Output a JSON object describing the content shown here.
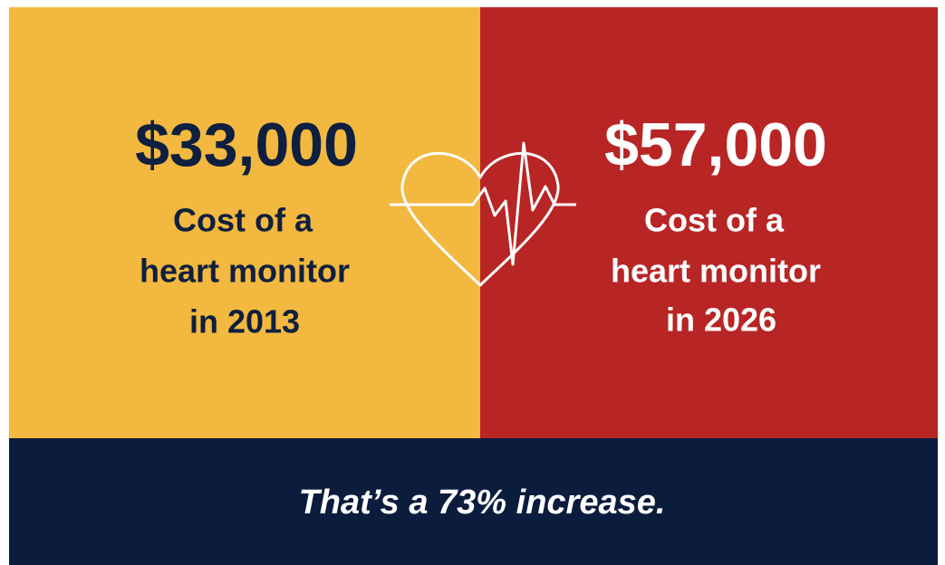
{
  "left": {
    "amount": "$33,000",
    "lines": [
      "Cost of a",
      "heart monitor",
      "in 2013"
    ]
  },
  "right": {
    "amount": "$57,000",
    "lines": [
      "Cost of a",
      "heart monitor",
      "in 2026"
    ]
  },
  "footer": {
    "text": "That’s a 73% increase."
  }
}
